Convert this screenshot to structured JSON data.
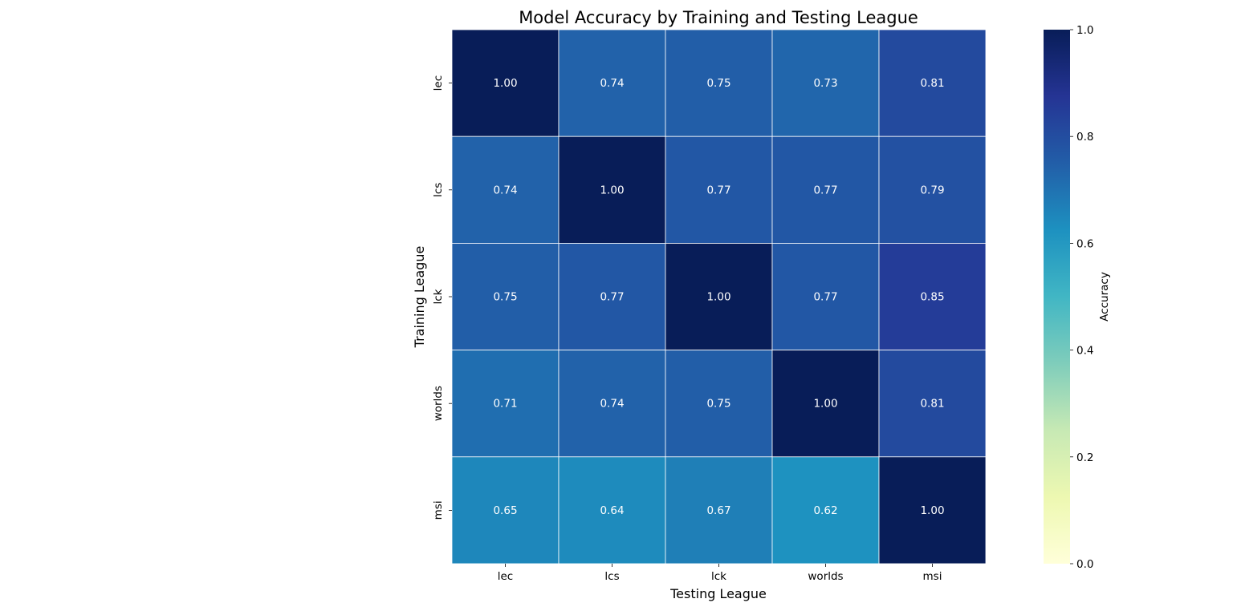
{
  "chart_data": {
    "type": "heatmap",
    "title": "Model Accuracy by Training and Testing League",
    "xlabel": "Testing League",
    "ylabel": "Training League",
    "x_categories": [
      "lec",
      "lcs",
      "lck",
      "worlds",
      "msi"
    ],
    "y_categories": [
      "lec",
      "lcs",
      "lck",
      "worlds",
      "msi"
    ],
    "values": [
      [
        1.0,
        0.74,
        0.75,
        0.73,
        0.81
      ],
      [
        0.74,
        1.0,
        0.77,
        0.77,
        0.79
      ],
      [
        0.75,
        0.77,
        1.0,
        0.77,
        0.85
      ],
      [
        0.71,
        0.74,
        0.75,
        1.0,
        0.81
      ],
      [
        0.65,
        0.64,
        0.67,
        0.62,
        1.0
      ]
    ],
    "value_labels": [
      [
        "1.00",
        "0.74",
        "0.75",
        "0.73",
        "0.81"
      ],
      [
        "0.74",
        "1.00",
        "0.77",
        "0.77",
        "0.79"
      ],
      [
        "0.75",
        "0.77",
        "1.00",
        "0.77",
        "0.85"
      ],
      [
        "0.71",
        "0.74",
        "0.75",
        "1.00",
        "0.81"
      ],
      [
        "0.65",
        "0.64",
        "0.67",
        "0.62",
        "1.00"
      ]
    ],
    "colormap": "YlGnBu",
    "vmin": 0.0,
    "vmax": 1.0,
    "grid_line_color": "#ffffff",
    "colorbar": {
      "label": "Accuracy",
      "ticks": [
        0.0,
        0.2,
        0.4,
        0.6,
        0.8,
        1.0
      ],
      "tick_labels": [
        "0.0",
        "0.2",
        "0.4",
        "0.6",
        "0.8",
        "1.0"
      ],
      "placement": "right"
    }
  }
}
